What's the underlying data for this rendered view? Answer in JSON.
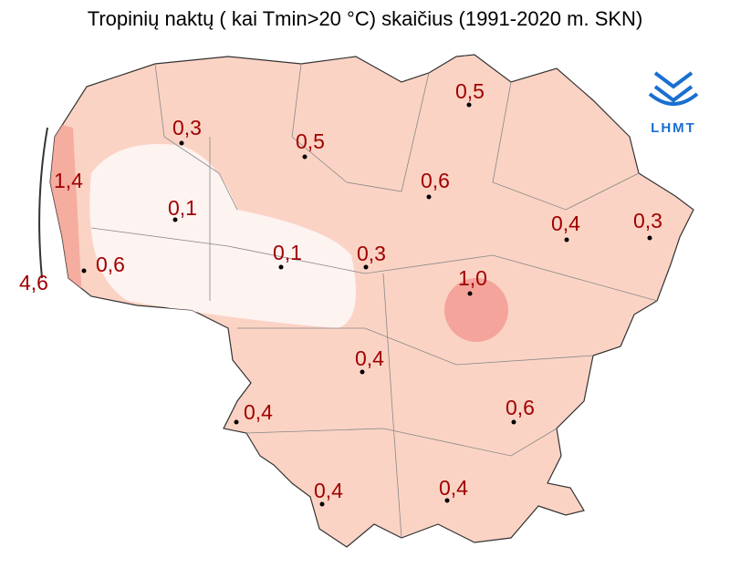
{
  "title": "Tropinių naktų ( kai Tmin>20 °C) skaičius (1991-2020 m. SKN)",
  "logo": "LHMT",
  "stations": [
    {
      "label": "0,5"
    },
    {
      "label": "0,3"
    },
    {
      "label": "0,5"
    },
    {
      "label": "1,4"
    },
    {
      "label": "0,6"
    },
    {
      "label": "0,1"
    },
    {
      "label": "0,4"
    },
    {
      "label": "0,3"
    },
    {
      "label": "0,1"
    },
    {
      "label": "0,3"
    },
    {
      "label": "0,6"
    },
    {
      "label": "4,6"
    },
    {
      "label": "1,0"
    },
    {
      "label": "0,4"
    },
    {
      "label": "0,6"
    },
    {
      "label": "0,4"
    },
    {
      "label": "0,4"
    },
    {
      "label": "0,4"
    }
  ]
}
